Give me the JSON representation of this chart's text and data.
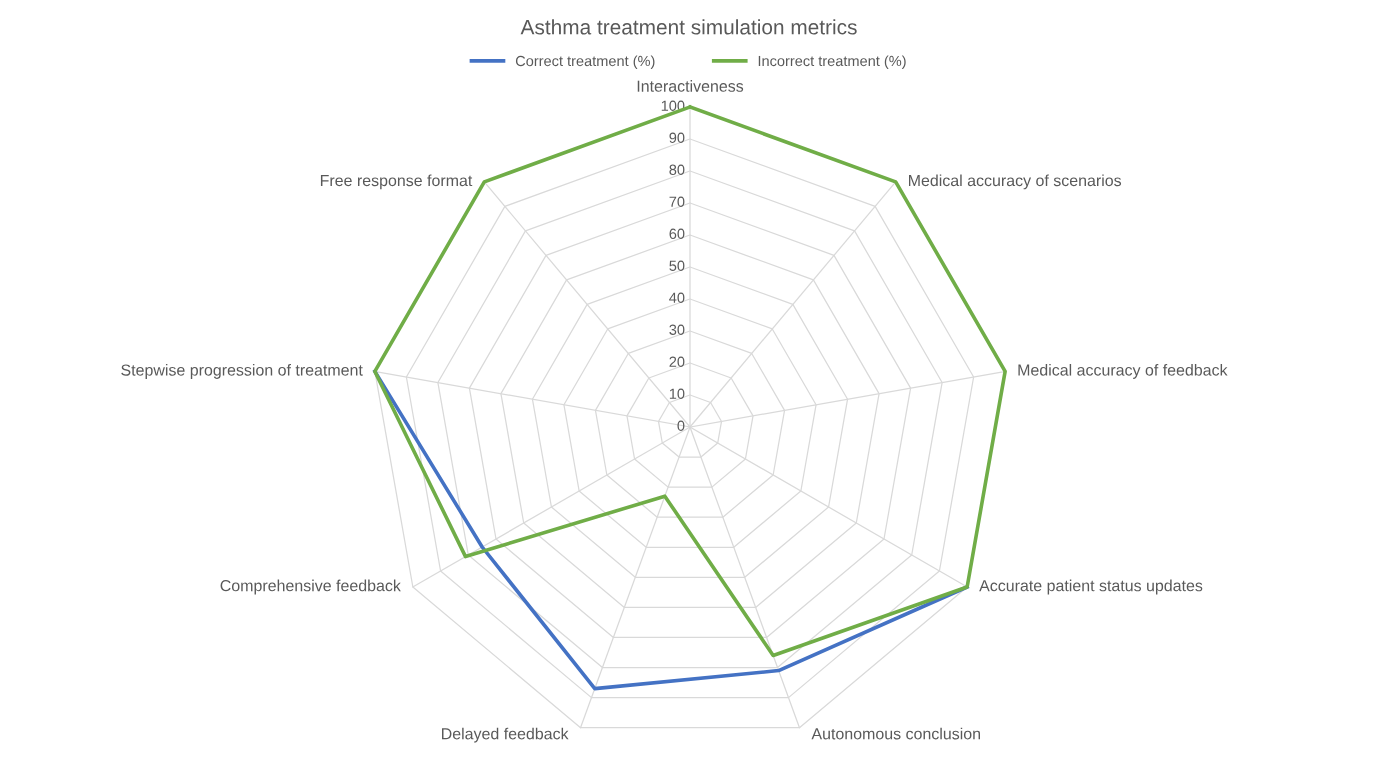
{
  "chart_data": {
    "type": "radar",
    "title": "Asthma treatment simulation metrics",
    "categories": [
      "Interactiveness",
      "Medical accuracy of scenarios",
      "Medical accuracy of feedback",
      "Accurate patient status updates",
      "Autonomous conclusion",
      "Delayed feedback",
      "Comprehensive feedback",
      "Stepwise progression of treatment",
      "Free response format"
    ],
    "series": [
      {
        "name": "Correct treatment (%)",
        "color": "#4472c4",
        "values": [
          null,
          null,
          null,
          100,
          81,
          87,
          75,
          100,
          null
        ]
      },
      {
        "name": "Incorrect treatment (%)",
        "color": "#70ad47",
        "values": [
          100,
          100,
          100,
          100,
          76,
          23,
          81,
          100,
          100
        ]
      }
    ],
    "ylim": [
      0,
      100
    ],
    "yticks": [
      0,
      10,
      20,
      30,
      40,
      50,
      60,
      70,
      80,
      90,
      100
    ],
    "grid": true,
    "legend": "top",
    "marker": "none",
    "line_style": "solid"
  }
}
